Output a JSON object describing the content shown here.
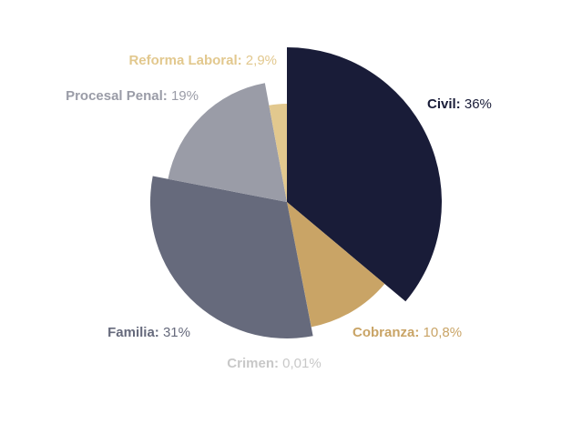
{
  "chart_data": {
    "type": "pie",
    "slices": [
      {
        "name": "Civil",
        "display": "36%",
        "value": 36,
        "color": "#191c38",
        "label_anchor": "start"
      },
      {
        "name": "Cobranza",
        "display": "10,8%",
        "value": 10.8,
        "color": "#c9a466",
        "label_anchor": "start"
      },
      {
        "name": "Crimen",
        "display": "0,01%",
        "value": 0.01,
        "color": "#c8c8c8",
        "label_anchor": "middle"
      },
      {
        "name": "Familia",
        "display": "31%",
        "value": 31,
        "color": "#666a7c",
        "label_anchor": "end"
      },
      {
        "name": "Procesal Penal",
        "display": "19%",
        "value": 19,
        "color": "#9a9ca7",
        "label_anchor": "end"
      },
      {
        "name": "Reforma Laboral",
        "display": "2,9%",
        "value": 2.9,
        "color": "#e2c88e",
        "label_anchor": "end"
      }
    ]
  }
}
